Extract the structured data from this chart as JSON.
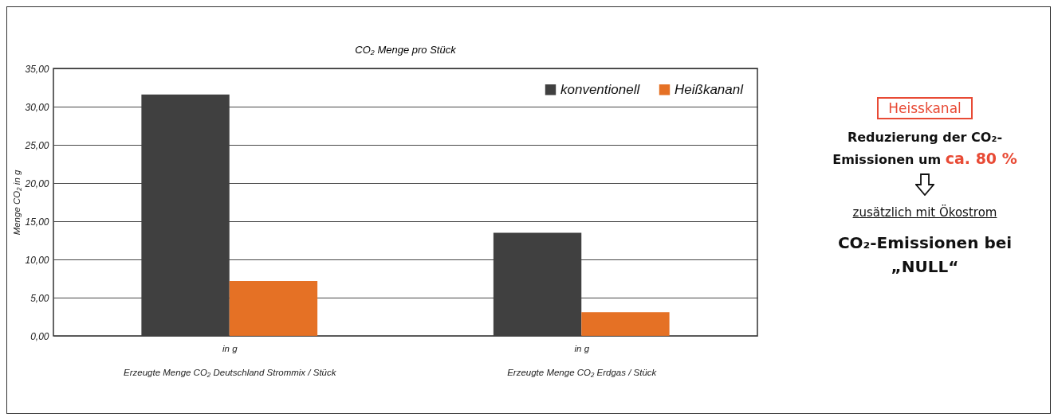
{
  "chart_data": {
    "type": "bar",
    "title": "CO₂ Menge pro Stück",
    "ylabel": "Menge CO₂ in g",
    "categories": [
      "in g\nErzeugte Menge CO₂ Deutschland Strommix  / Stück",
      "in g\nErzeugte Menge CO₂ Erdgas / Stück"
    ],
    "series": [
      {
        "name": "konventionell",
        "color": "#404040",
        "values": [
          31.6,
          13.5
        ]
      },
      {
        "name": "Heißkananl",
        "color": "#e57125",
        "values": [
          7.2,
          3.1
        ]
      }
    ],
    "ylim": [
      0,
      35
    ],
    "yticks": [
      {
        "value": 0,
        "label": "0,00"
      },
      {
        "value": 5,
        "label": "5,00"
      },
      {
        "value": 10,
        "label": "10,00"
      },
      {
        "value": 15,
        "label": "15,00"
      },
      {
        "value": 20,
        "label": "20,00"
      },
      {
        "value": 25,
        "label": "25,00"
      },
      {
        "value": 30,
        "label": "30,00"
      },
      {
        "value": 35,
        "label": "35,00"
      }
    ],
    "grid": "y",
    "legend": "top right",
    "annotations": [
      "Heisskanal",
      "Reduzierung der CO₂-Emissionen um",
      "ca. 80 %",
      "zusätzlich mit Ökostrom",
      "CO₂-Emissionen bei „NULL“"
    ]
  }
}
